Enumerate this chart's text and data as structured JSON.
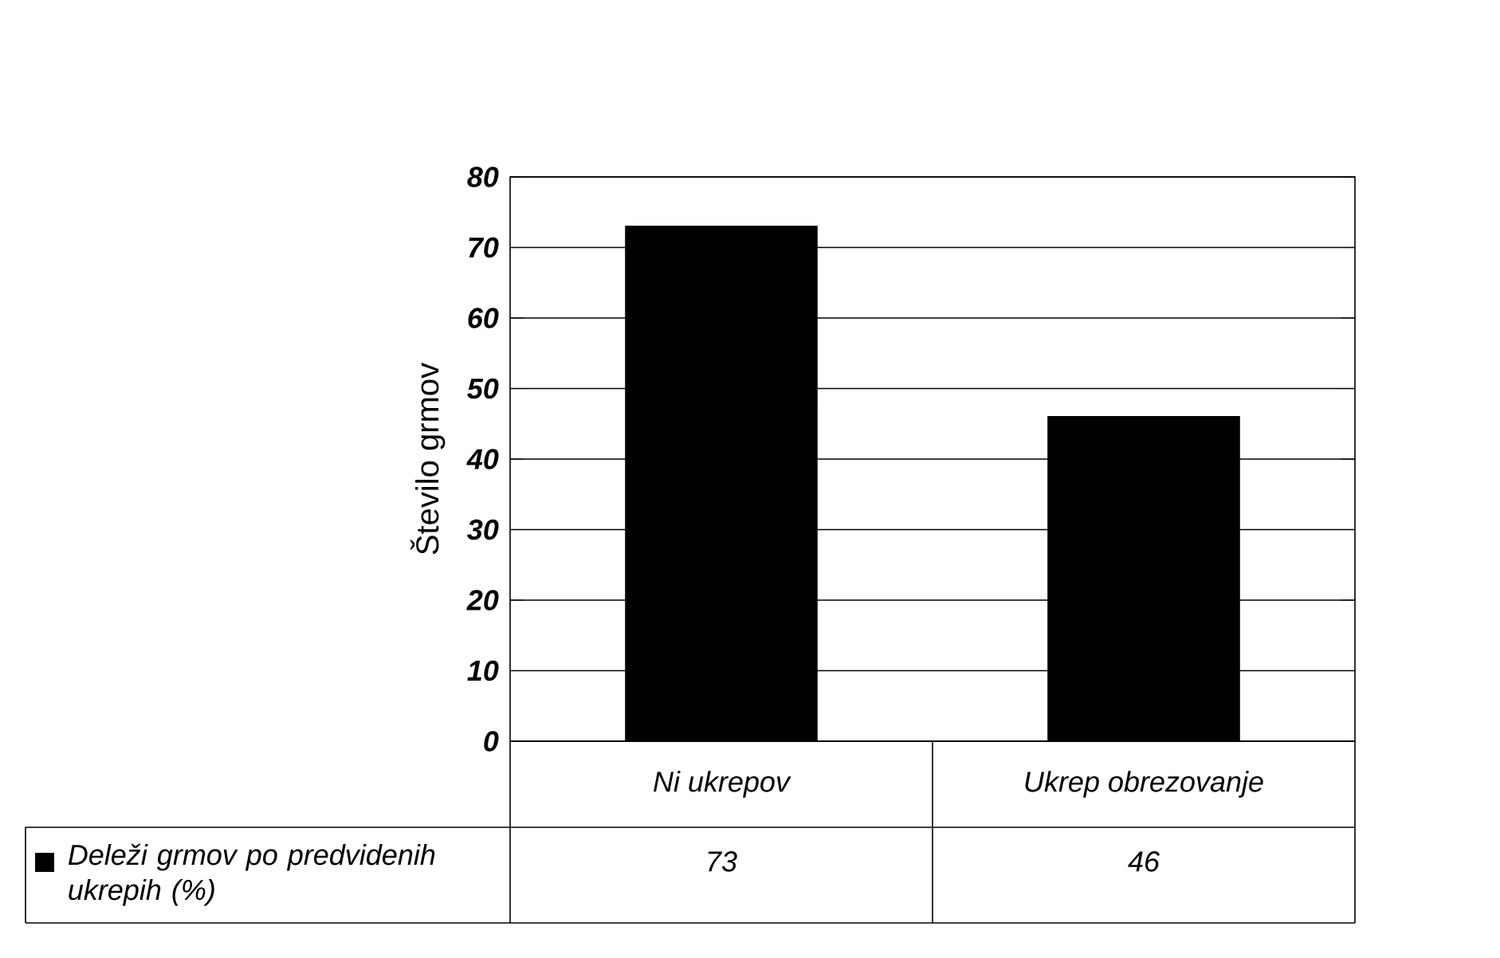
{
  "chart_data": {
    "type": "bar",
    "ylabel": "Število grmov",
    "categories": [
      "Ni ukrepov",
      "Ukrep obrezovanje"
    ],
    "series": [
      {
        "name": "Deleži grmov po predvidenih ukrepih (%)",
        "color": "#000000",
        "values": [
          73,
          46
        ]
      }
    ],
    "ylim": [
      0,
      80
    ],
    "yticks": [
      0,
      10,
      20,
      30,
      40,
      50,
      60,
      70,
      80
    ],
    "grid": "y",
    "data_labels": true,
    "legend": "bottom left"
  }
}
